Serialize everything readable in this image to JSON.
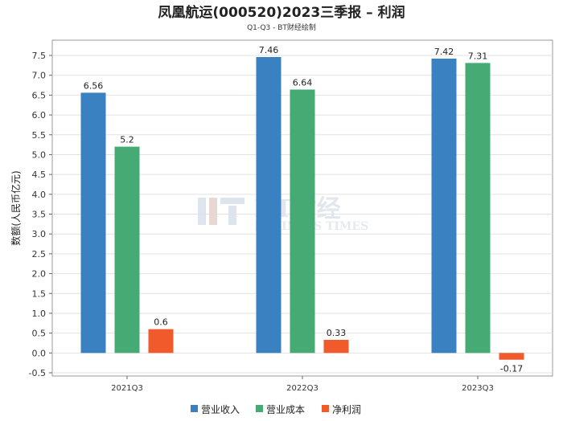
{
  "chart_data": {
    "type": "bar",
    "title": "凤凰航运(000520)2023三季报 – 利润",
    "subtitle": "Q1-Q3 - BT财经绘制",
    "ylabel": "数额(人民币亿元)",
    "xlabel": "",
    "categories": [
      "2021Q3",
      "2022Q3",
      "2023Q3"
    ],
    "series": [
      {
        "name": "营业收入",
        "color": "#3a81c2",
        "values": [
          6.56,
          7.46,
          7.42
        ]
      },
      {
        "name": "营业成本",
        "color": "#46aa74",
        "values": [
          5.2,
          6.64,
          7.31
        ]
      },
      {
        "name": "净利润",
        "color": "#f15a2b",
        "values": [
          0.6,
          0.33,
          -0.17
        ]
      }
    ],
    "ylim": [
      -0.5,
      7.5
    ],
    "yticks": [
      "-0.5",
      "0.0",
      "0.5",
      "1.0",
      "1.5",
      "2.0",
      "2.5",
      "3.0",
      "3.5",
      "4.0",
      "4.5",
      "5.0",
      "5.5",
      "6.0",
      "6.5",
      "7.0",
      "7.5"
    ],
    "grid": true,
    "legend": "bottom"
  },
  "watermark": {
    "brand": "BT财经",
    "tagline": "BUSINESS TIMES"
  }
}
